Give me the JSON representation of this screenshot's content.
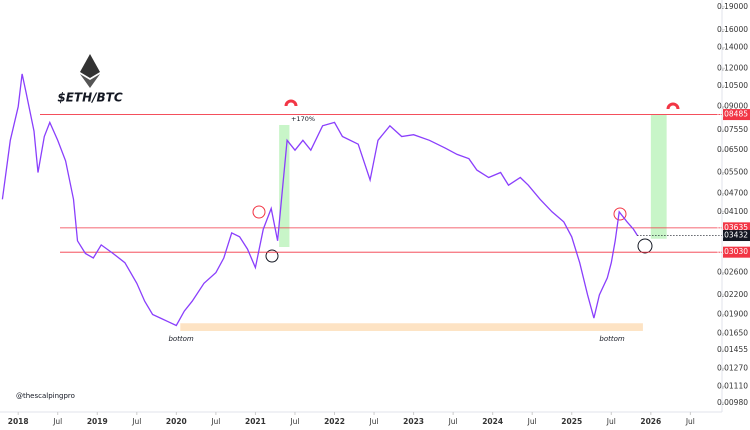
{
  "chart_data": {
    "type": "line",
    "title": "$ETH/BTC",
    "color": "#8a3ffc",
    "log_scale": true,
    "grid": false,
    "x": [
      2017.8,
      2017.9,
      2018.0,
      2018.05,
      2018.1,
      2018.2,
      2018.25,
      2018.33,
      2018.4,
      2018.5,
      2018.6,
      2018.7,
      2018.75,
      2018.85,
      2018.95,
      2019.05,
      2019.2,
      2019.35,
      2019.5,
      2019.6,
      2019.7,
      2019.8,
      2019.9,
      2020.0,
      2020.1,
      2020.2,
      2020.35,
      2020.5,
      2020.6,
      2020.7,
      2020.8,
      2020.9,
      2021.0,
      2021.1,
      2021.2,
      2021.28,
      2021.33,
      2021.4,
      2021.5,
      2021.6,
      2021.7,
      2021.85,
      2022.0,
      2022.1,
      2022.3,
      2022.45,
      2022.55,
      2022.7,
      2022.85,
      2023.0,
      2023.2,
      2023.4,
      2023.55,
      2023.7,
      2023.8,
      2023.95,
      2024.1,
      2024.2,
      2024.35,
      2024.45,
      2024.6,
      2024.75,
      2024.9,
      2025.0,
      2025.1,
      2025.2,
      2025.28,
      2025.35,
      2025.45,
      2025.5,
      2025.55,
      2025.6,
      2025.7,
      2025.78,
      2025.83
    ],
    "values": [
      0.045,
      0.07,
      0.09,
      0.115,
      0.1,
      0.075,
      0.055,
      0.072,
      0.08,
      0.07,
      0.06,
      0.045,
      0.033,
      0.03,
      0.029,
      0.032,
      0.03,
      0.028,
      0.024,
      0.021,
      0.019,
      0.0185,
      0.018,
      0.0175,
      0.0195,
      0.021,
      0.024,
      0.026,
      0.029,
      0.035,
      0.034,
      0.031,
      0.027,
      0.036,
      0.042,
      0.033,
      0.045,
      0.07,
      0.065,
      0.07,
      0.065,
      0.078,
      0.08,
      0.072,
      0.068,
      0.052,
      0.07,
      0.078,
      0.072,
      0.073,
      0.07,
      0.066,
      0.063,
      0.061,
      0.056,
      0.053,
      0.055,
      0.05,
      0.053,
      0.05,
      0.045,
      0.041,
      0.038,
      0.034,
      0.028,
      0.022,
      0.0185,
      0.022,
      0.025,
      0.028,
      0.033,
      0.041,
      0.038,
      0.036,
      0.03432
    ],
    "xlim": [
      2017.77,
      2026.9
    ],
    "xticks": [
      {
        "value": 2018,
        "label": "2018"
      },
      {
        "value": 2018.5,
        "label": "Jul"
      },
      {
        "value": 2019,
        "label": "2019"
      },
      {
        "value": 2019.5,
        "label": "Jul"
      },
      {
        "value": 2020,
        "label": "2020"
      },
      {
        "value": 2020.5,
        "label": "Jul"
      },
      {
        "value": 2021,
        "label": "2021"
      },
      {
        "value": 2021.5,
        "label": "Jul"
      },
      {
        "value": 2022,
        "label": "2022"
      },
      {
        "value": 2022.5,
        "label": "Jul"
      },
      {
        "value": 2023,
        "label": "2023"
      },
      {
        "value": 2023.5,
        "label": "Jul"
      },
      {
        "value": 2024,
        "label": "2024"
      },
      {
        "value": 2024.5,
        "label": "Jul"
      },
      {
        "value": 2025,
        "label": "2025"
      },
      {
        "value": 2025.5,
        "label": "Jul"
      },
      {
        "value": 2026,
        "label": "2026"
      },
      {
        "value": 2026.5,
        "label": "Jul"
      }
    ],
    "ylim": [
      0.0093,
      0.2
    ],
    "yticks": [
      {
        "value": 0.19,
        "label": "0.19000"
      },
      {
        "value": 0.16,
        "label": "0.16000"
      },
      {
        "value": 0.14,
        "label": "0.14000"
      },
      {
        "value": 0.12,
        "label": "0.12000"
      },
      {
        "value": 0.105,
        "label": "0.10500"
      },
      {
        "value": 0.09,
        "label": "0.09000"
      },
      {
        "value": 0.0755,
        "label": "0.07550"
      },
      {
        "value": 0.065,
        "label": "0.06500"
      },
      {
        "value": 0.055,
        "label": "0.05500"
      },
      {
        "value": 0.047,
        "label": "0.04700"
      },
      {
        "value": 0.041,
        "label": "0.04100"
      },
      {
        "value": 0.026,
        "label": "0.02600"
      },
      {
        "value": 0.022,
        "label": "0.02200"
      },
      {
        "value": 0.019,
        "label": "0.01900"
      },
      {
        "value": 0.0165,
        "label": "0.01650"
      },
      {
        "value": 0.01455,
        "label": "0.01455"
      },
      {
        "value": 0.0127,
        "label": "0.01270"
      },
      {
        "value": 0.0111,
        "label": "0.01110"
      },
      {
        "value": 0.0098,
        "label": "0.00980"
      }
    ],
    "levels": [
      {
        "value": 0.08485,
        "label": "0.08485"
      },
      {
        "value": 0.03635,
        "label": "0.03635"
      },
      {
        "value": 0.0303,
        "label": "0.03030"
      }
    ],
    "level_color": "#f23645",
    "last_price": {
      "value": 0.03432,
      "label": "0.03432"
    },
    "zones": [
      {
        "x0": 2021.3,
        "x1": 2021.43,
        "low": 0.0315,
        "high": 0.0785,
        "color": "#c8f5c8"
      },
      {
        "x0": 2026.0,
        "x1": 2026.2,
        "low": 0.0335,
        "high": 0.08485,
        "color": "#c8f5c8"
      },
      {
        "x0": 2020.05,
        "x1": 2025.9,
        "low": 0.0168,
        "high": 0.0178,
        "color": "#fde3c4"
      }
    ],
    "annotations": [
      "+170%",
      "bottom",
      "bottom",
      "@thescalpingpro"
    ]
  }
}
